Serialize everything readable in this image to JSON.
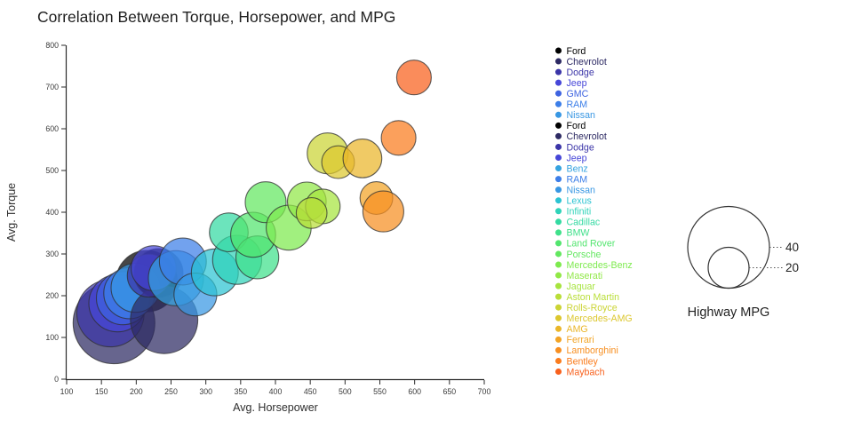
{
  "title": "Correlation Between Torque, Horsepower, and MPG",
  "chart_data": {
    "type": "scatter",
    "variant": "bubble",
    "title": "Correlation Between Torque, Horsepower, and MPG",
    "xlabel": "Avg. Horsepower",
    "ylabel": "Avg. Torque",
    "xlim": [
      100,
      700
    ],
    "ylim": [
      0,
      800
    ],
    "xticks": [
      100,
      150,
      200,
      250,
      300,
      350,
      400,
      450,
      500,
      550,
      600,
      650,
      700
    ],
    "yticks": [
      0,
      100,
      200,
      300,
      400,
      500,
      600,
      700,
      800
    ],
    "grid": false,
    "legend_position": "right",
    "size_legend": {
      "title": "Highway MPG",
      "values": [
        40,
        20
      ]
    },
    "points": [
      {
        "brand": "Ford",
        "hp": 215,
        "torque": 235,
        "mpg": 30,
        "color": "#000000"
      },
      {
        "brand": "Chevrolot",
        "hp": 168,
        "torque": 135,
        "mpg": 40,
        "color": "#2d2a63"
      },
      {
        "brand": "Dodge",
        "hp": 163,
        "torque": 158,
        "mpg": 33,
        "color": "#3b35a8"
      },
      {
        "brand": "Jeep",
        "hp": 173,
        "torque": 182,
        "mpg": 28,
        "color": "#4646d8"
      },
      {
        "brand": "GMC",
        "hp": 181,
        "torque": 194,
        "mpg": 26,
        "color": "#3e63e0"
      },
      {
        "brand": "RAM",
        "hp": 190,
        "torque": 206,
        "mpg": 25,
        "color": "#3c7ee8"
      },
      {
        "brand": "Nissan",
        "hp": 199,
        "torque": 219,
        "mpg": 24,
        "color": "#3897e3"
      },
      {
        "brand": "Ford",
        "hp": 232,
        "torque": 254,
        "mpg": 24,
        "color": "#000000"
      },
      {
        "brand": "Chevrolot",
        "hp": 240,
        "torque": 142,
        "mpg": 33,
        "color": "#2d2a63"
      },
      {
        "brand": "Dodge",
        "hp": 218,
        "torque": 248,
        "mpg": 21,
        "color": "#3b35a8"
      },
      {
        "brand": "Jeep",
        "hp": 225,
        "torque": 266,
        "mpg": 22,
        "color": "#4646d8"
      },
      {
        "brand": "Benz",
        "hp": 257,
        "torque": 242,
        "mpg": 27,
        "color": "#35a3e0"
      },
      {
        "brand": "RAM",
        "hp": 267,
        "torque": 282,
        "mpg": 23,
        "color": "#3c7ee8"
      },
      {
        "brand": "Nissan",
        "hp": 285,
        "torque": 203,
        "mpg": 21,
        "color": "#3897e3"
      },
      {
        "brand": "Lexus",
        "hp": 313,
        "torque": 256,
        "mpg": 23,
        "color": "#2cc3d2"
      },
      {
        "brand": "Infiniti",
        "hp": 345,
        "torque": 286,
        "mpg": 24,
        "color": "#2fd3b9"
      },
      {
        "brand": "Cadillac",
        "hp": 333,
        "torque": 352,
        "mpg": 19,
        "color": "#33daa2"
      },
      {
        "brand": "BMW",
        "hp": 374,
        "torque": 292,
        "mpg": 21,
        "color": "#3fe08a"
      },
      {
        "brand": "Land Rover",
        "hp": 368,
        "torque": 346,
        "mpg": 22,
        "color": "#52e56e"
      },
      {
        "brand": "Porsche",
        "hp": 386,
        "torque": 424,
        "mpg": 20,
        "color": "#62e75f"
      },
      {
        "brand": "Mercedes-Benz",
        "hp": 419,
        "torque": 363,
        "mpg": 22,
        "color": "#7dea4e"
      },
      {
        "brand": "Maserati",
        "hp": 445,
        "torque": 426,
        "mpg": 19,
        "color": "#90e846"
      },
      {
        "brand": "Jaguar",
        "hp": 468,
        "torque": 414,
        "mpg": 17,
        "color": "#a6e43e"
      },
      {
        "brand": "Aston Martin",
        "hp": 452,
        "torque": 398,
        "mpg": 15,
        "color": "#b9de38"
      },
      {
        "brand": "Rolls-Royce",
        "hp": 475,
        "torque": 541,
        "mpg": 20,
        "color": "#cbd434"
      },
      {
        "brand": "Mercedes-AMG",
        "hp": 490,
        "torque": 520,
        "mpg": 16,
        "color": "#dcc72e"
      },
      {
        "brand": "AMG",
        "hp": 525,
        "torque": 529,
        "mpg": 19,
        "color": "#eab629"
      },
      {
        "brand": "Ferrari",
        "hp": 545,
        "torque": 434,
        "mpg": 16,
        "color": "#f2a425"
      },
      {
        "brand": "Lamborghini",
        "hp": 555,
        "torque": 402,
        "mpg": 20,
        "color": "#f78f21"
      },
      {
        "brand": "Bentley",
        "hp": 577,
        "torque": 578,
        "mpg": 17,
        "color": "#fa7c1d"
      },
      {
        "brand": "Maybach",
        "hp": 599,
        "torque": 723,
        "mpg": 17,
        "color": "#f8601c"
      }
    ]
  }
}
